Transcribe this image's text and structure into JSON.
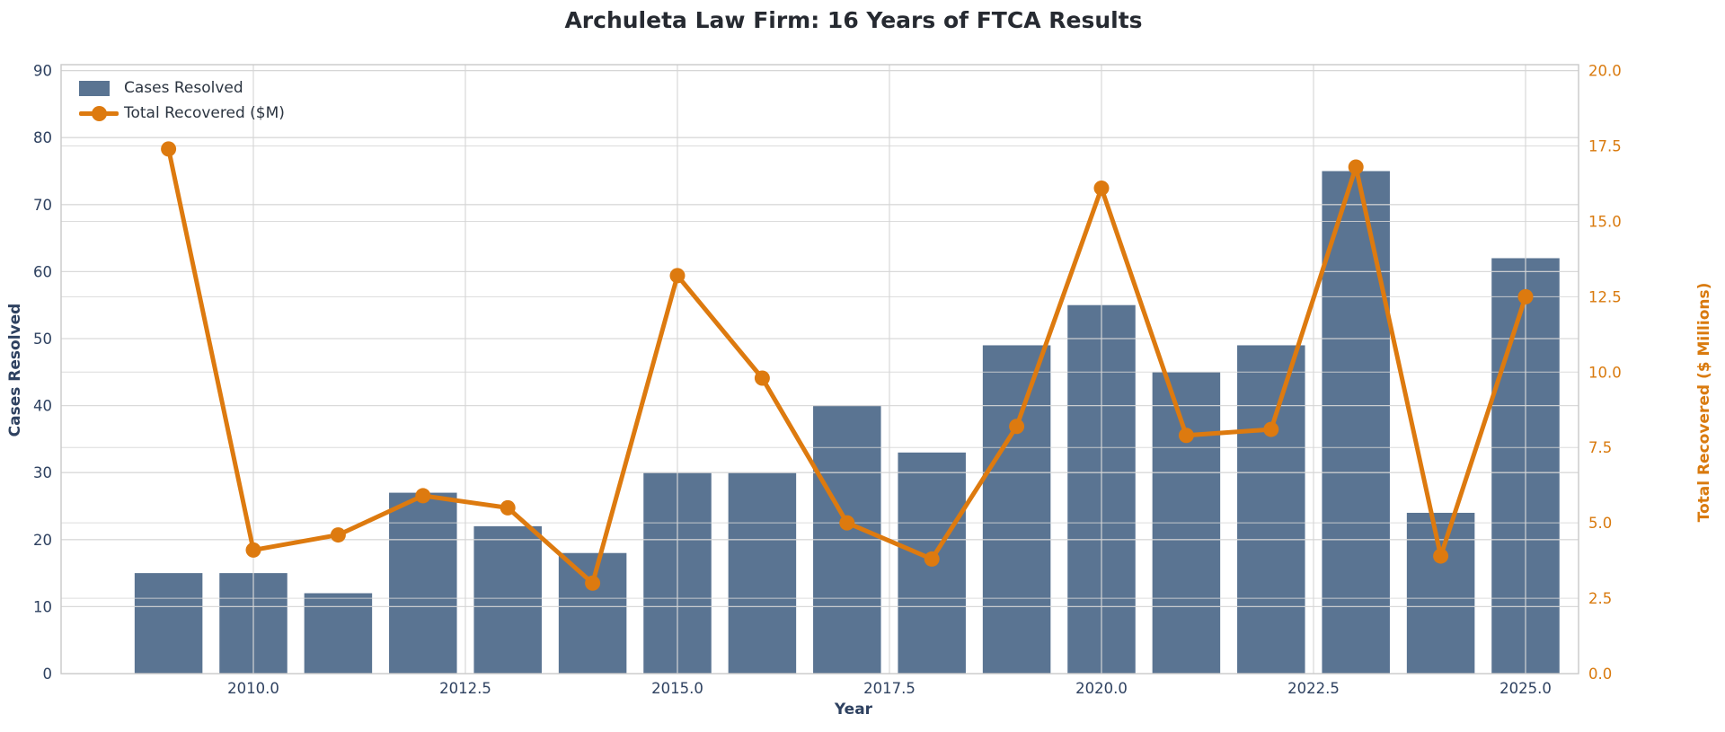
{
  "chart_data": {
    "type": "bar",
    "title": "Archuleta Law Firm: 16 Years of FTCA Results",
    "xlabel": "Year",
    "ylabel_left": "Cases Resolved",
    "ylabel_right": "Total Recovered ($ Millions)",
    "years": [
      2009,
      2010,
      2011,
      2012,
      2013,
      2014,
      2015,
      2016,
      2017,
      2018,
      2019,
      2020,
      2021,
      2022,
      2023,
      2024,
      2025
    ],
    "series": [
      {
        "name": "Cases Resolved",
        "type": "bar",
        "axis": "left",
        "values": [
          15,
          15,
          12,
          27,
          22,
          18,
          30,
          30,
          40,
          33,
          49,
          55,
          45,
          49,
          75,
          24,
          62
        ]
      },
      {
        "name": "Total Recovered ($M)",
        "type": "line",
        "axis": "right",
        "values": [
          17.4,
          4.1,
          4.6,
          5.9,
          5.5,
          3.0,
          13.2,
          9.8,
          5.0,
          3.8,
          8.2,
          16.1,
          7.9,
          8.1,
          16.8,
          3.9,
          12.5
        ]
      }
    ],
    "x_ticks": [
      "2010.0",
      "2012.5",
      "2015.0",
      "2017.5",
      "2020.0",
      "2022.5",
      "2025.0"
    ],
    "y_ticks_left": [
      "0",
      "10",
      "20",
      "30",
      "40",
      "50",
      "60",
      "70",
      "80",
      "90"
    ],
    "y_ticks_right": [
      "0.0",
      "2.5",
      "5.0",
      "7.5",
      "10.0",
      "12.5",
      "15.0",
      "17.5",
      "20.0"
    ],
    "ylim_left": [
      0,
      90
    ],
    "ylim_right": [
      0,
      20
    ],
    "legend": [
      "Cases Resolved",
      "Total Recovered ($M)"
    ],
    "legend_position": "upper-left",
    "grid": "on",
    "colors": {
      "bar": "#5a7492",
      "line": "#dd7a0f",
      "left_text": "#2e4160",
      "right_text": "#d97a0e",
      "title": "#262a31",
      "legend_text": "#2b3440",
      "grid": "#d6d6d6",
      "spine": "#c9c9c9",
      "background": "#ffffff"
    }
  }
}
